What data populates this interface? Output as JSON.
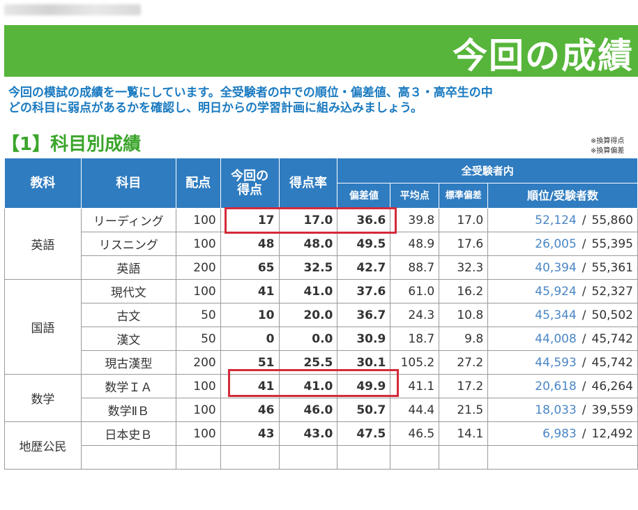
{
  "banner": {
    "title": "今回の成績"
  },
  "intro": {
    "line1": "今回の模試の成績を一覧にしています。全受験者の中での順位・偏差値、高３・高卒生の中",
    "line2": "どの科目に弱点があるかを確認し、明日からの学習計画に組み込みましょう。"
  },
  "section": {
    "title": "【1】科目別成績"
  },
  "notes": {
    "line1": "※換算得点",
    "line2": "※換算偏差"
  },
  "table": {
    "headers": {
      "kyoka": "教科",
      "kamoku": "科目",
      "haiten": "配点",
      "tokuten_line1": "今回の",
      "tokuten_line2": "得点",
      "tokutenritsu": "得点率",
      "zenjukensha": "全受験者内",
      "hensachi": "偏差値",
      "heikinten": "平均点",
      "hyojunhensa": "標準偏差",
      "juni": "順位/受験者数"
    },
    "groups": [
      {
        "kyoka": "英語",
        "rows": [
          {
            "kamoku": "リーディング",
            "haiten": "100",
            "tokuten": "17",
            "ritsu": "17.0",
            "hensachi": "36.6",
            "heikin": "39.8",
            "hyojun": "17.0",
            "juni": "52,124",
            "sep": "/",
            "total": "55,860"
          },
          {
            "kamoku": "リスニング",
            "haiten": "100",
            "tokuten": "48",
            "ritsu": "48.0",
            "hensachi": "49.5",
            "heikin": "48.9",
            "hyojun": "17.6",
            "juni": "26,005",
            "sep": "/",
            "total": "55,395"
          },
          {
            "kamoku": "英語",
            "haiten": "200",
            "tokuten": "65",
            "ritsu": "32.5",
            "hensachi": "42.7",
            "heikin": "88.7",
            "hyojun": "32.3",
            "juni": "40,394",
            "sep": "/",
            "total": "55,361"
          }
        ]
      },
      {
        "kyoka": "国語",
        "rows": [
          {
            "kamoku": "現代文",
            "haiten": "100",
            "tokuten": "41",
            "ritsu": "41.0",
            "hensachi": "37.6",
            "heikin": "61.0",
            "hyojun": "16.2",
            "juni": "45,924",
            "sep": "/",
            "total": "52,327"
          },
          {
            "kamoku": "古文",
            "haiten": "50",
            "tokuten": "10",
            "ritsu": "20.0",
            "hensachi": "36.7",
            "heikin": "24.3",
            "hyojun": "10.8",
            "juni": "45,344",
            "sep": "/",
            "total": "50,502"
          },
          {
            "kamoku": "漢文",
            "haiten": "50",
            "tokuten": "0",
            "ritsu": "0.0",
            "hensachi": "30.9",
            "heikin": "18.7",
            "hyojun": "9.8",
            "juni": "44,008",
            "sep": "/",
            "total": "45,742"
          },
          {
            "kamoku": "現古漢型",
            "haiten": "200",
            "tokuten": "51",
            "ritsu": "25.5",
            "hensachi": "30.1",
            "heikin": "105.2",
            "hyojun": "27.2",
            "juni": "44,593",
            "sep": "/",
            "total": "45,742"
          }
        ]
      },
      {
        "kyoka": "数学",
        "rows": [
          {
            "kamoku": "数学ＩＡ",
            "haiten": "100",
            "tokuten": "41",
            "ritsu": "41.0",
            "hensachi": "49.9",
            "heikin": "41.1",
            "hyojun": "17.2",
            "juni": "20,618",
            "sep": "/",
            "total": "46,264"
          },
          {
            "kamoku": "数学ⅡＢ",
            "haiten": "100",
            "tokuten": "46",
            "ritsu": "46.0",
            "hensachi": "50.7",
            "heikin": "44.4",
            "hyojun": "21.5",
            "juni": "18,033",
            "sep": "/",
            "total": "39,559"
          }
        ]
      },
      {
        "kyoka": "地歴公民",
        "rows": [
          {
            "kamoku": "日本史Ｂ",
            "haiten": "100",
            "tokuten": "43",
            "ritsu": "43.0",
            "hensachi": "47.5",
            "heikin": "46.5",
            "hyojun": "14.1",
            "juni": "6,983",
            "sep": "/",
            "total": "12,492"
          },
          {
            "kamoku": "",
            "haiten": "",
            "tokuten": "",
            "ritsu": "",
            "hensachi": "",
            "heikin": "",
            "hyojun": "",
            "juni": "",
            "sep": "",
            "total": ""
          }
        ]
      }
    ]
  },
  "colors": {
    "banner_green": "#56b53a",
    "header_blue": "#2f7cc0",
    "score_blue": "#1f6fb7",
    "highlight_red": "#d32a3a",
    "intro_blue": "#1a7ac0",
    "section_green": "#3aa52a"
  }
}
